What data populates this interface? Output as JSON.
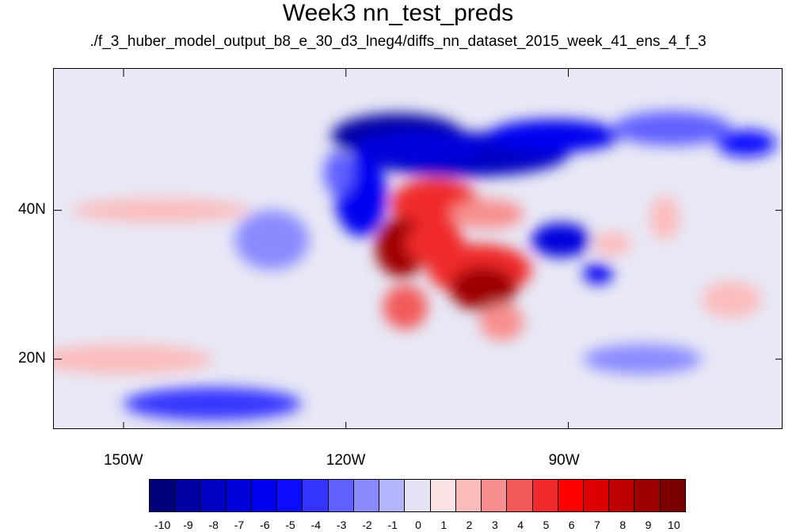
{
  "title": "Week3 nn_test_preds",
  "subtitle": "./f_3_huber_model_output_b8_e_30_d3_lneg4/diffs_nn_dataset_2015_week_41_ens_4_f_3",
  "chart_data": {
    "type": "heatmap",
    "title": "Week3 nn_test_preds",
    "subtitle": "./f_3_huber_model_output_b8_e_30_d3_lneg4/diffs_nn_dataset_2015_week_41_ens_4_f_3",
    "x_axis": {
      "ticks": [
        -150,
        -120,
        -90
      ],
      "tick_labels": [
        "150W",
        "120W",
        "90W"
      ],
      "range": [
        -159.4,
        -61
      ]
    },
    "y_axis": {
      "ticks": [
        40,
        20
      ],
      "tick_labels": [
        "40N",
        "20N"
      ],
      "range": [
        10.5,
        59
      ]
    },
    "colorbar": {
      "levels": [
        -10,
        -9,
        -8,
        -7,
        -6,
        -5,
        -4,
        -3,
        -2,
        -1,
        0,
        1,
        2,
        3,
        4,
        5,
        6,
        7,
        8,
        9,
        10
      ],
      "labels": [
        "-10",
        "-9",
        "-8",
        "-7",
        "-6",
        "-5",
        "-4",
        "-3",
        "-2",
        "-1",
        "0",
        "1",
        "2",
        "3",
        "4",
        "5",
        "6",
        "7",
        "8",
        "9",
        "10"
      ],
      "colors": [
        "#00007a",
        "#0000a3",
        "#0000c2",
        "#0000dd",
        "#0000f0",
        "#0c0cff",
        "#3535ff",
        "#6060ff",
        "#8a8aff",
        "#b4b4fa",
        "#e4e4f6",
        "#fce3e3",
        "#fcbcbc",
        "#f88f8f",
        "#f25a5a",
        "#f02a2a",
        "#ff0000",
        "#dd0000",
        "#bd0000",
        "#9e0000",
        "#7a0000"
      ]
    },
    "regions": [
      {
        "lon": -104,
        "lat": 47.5,
        "rlon": 14,
        "rlat": 3.0,
        "value": -8
      },
      {
        "lon": -113,
        "lat": 50,
        "rlon": 9,
        "rlat": 3.0,
        "value": -9
      },
      {
        "lon": -110,
        "lat": 48.5,
        "rlon": 9,
        "rlat": 2.2,
        "value": -7
      },
      {
        "lon": -92,
        "lat": 50,
        "rlon": 9,
        "rlat": 2.2,
        "value": -6
      },
      {
        "lon": -76,
        "lat": 51,
        "rlon": 8,
        "rlat": 2.3,
        "value": -3
      },
      {
        "lon": -66,
        "lat": 49,
        "rlon": 4,
        "rlat": 1.8,
        "value": -5
      },
      {
        "lon": -118,
        "lat": 42,
        "rlon": 3.5,
        "rlat": 5.5,
        "value": -6
      },
      {
        "lon": -121,
        "lat": 45,
        "rlon": 2,
        "rlat": 3,
        "value": -3
      },
      {
        "lon": -108,
        "lat": 40.8,
        "rlon": 6,
        "rlat": 3.5,
        "value": 5
      },
      {
        "lon": -101,
        "lat": 39.5,
        "rlon": 5,
        "rlat": 2,
        "value": 3
      },
      {
        "lon": -112.5,
        "lat": 35,
        "rlon": 3.5,
        "rlat": 4,
        "value": 9
      },
      {
        "lon": -108,
        "lat": 35.5,
        "rlon": 4,
        "rlat": 3,
        "value": 5
      },
      {
        "lon": -102,
        "lat": 32,
        "rlon": 7,
        "rlat": 3.5,
        "value": 5
      },
      {
        "lon": -101.5,
        "lat": 29.5,
        "rlon": 4.5,
        "rlat": 3,
        "value": 9
      },
      {
        "lon": -112,
        "lat": 27,
        "rlon": 3,
        "rlat": 3,
        "value": 4
      },
      {
        "lon": -99,
        "lat": 25,
        "rlon": 3,
        "rlat": 2.5,
        "value": 3
      },
      {
        "lon": -91,
        "lat": 36,
        "rlon": 4,
        "rlat": 2.3,
        "value": -7
      },
      {
        "lon": -86,
        "lat": 31.5,
        "rlon": 2,
        "rlat": 1.4,
        "value": -6
      },
      {
        "lon": -84,
        "lat": 35.5,
        "rlon": 2.5,
        "rlat": 1.6,
        "value": 2
      },
      {
        "lon": -77,
        "lat": 39,
        "rlon": 2,
        "rlat": 3,
        "value": 2
      },
      {
        "lon": -150,
        "lat": 20,
        "rlon": 12,
        "rlat": 2,
        "value": 2
      },
      {
        "lon": -145,
        "lat": 40,
        "rlon": 12,
        "rlat": 1.6,
        "value": 2
      },
      {
        "lon": -130,
        "lat": 36,
        "rlon": 5,
        "rlat": 4,
        "value": -2
      },
      {
        "lon": -138,
        "lat": 14,
        "rlon": 12,
        "rlat": 2.2,
        "value": -4
      },
      {
        "lon": -80,
        "lat": 20,
        "rlon": 8,
        "rlat": 2,
        "value": -2
      },
      {
        "lon": -68,
        "lat": 28,
        "rlon": 4,
        "rlat": 2.5,
        "value": 2
      }
    ]
  }
}
